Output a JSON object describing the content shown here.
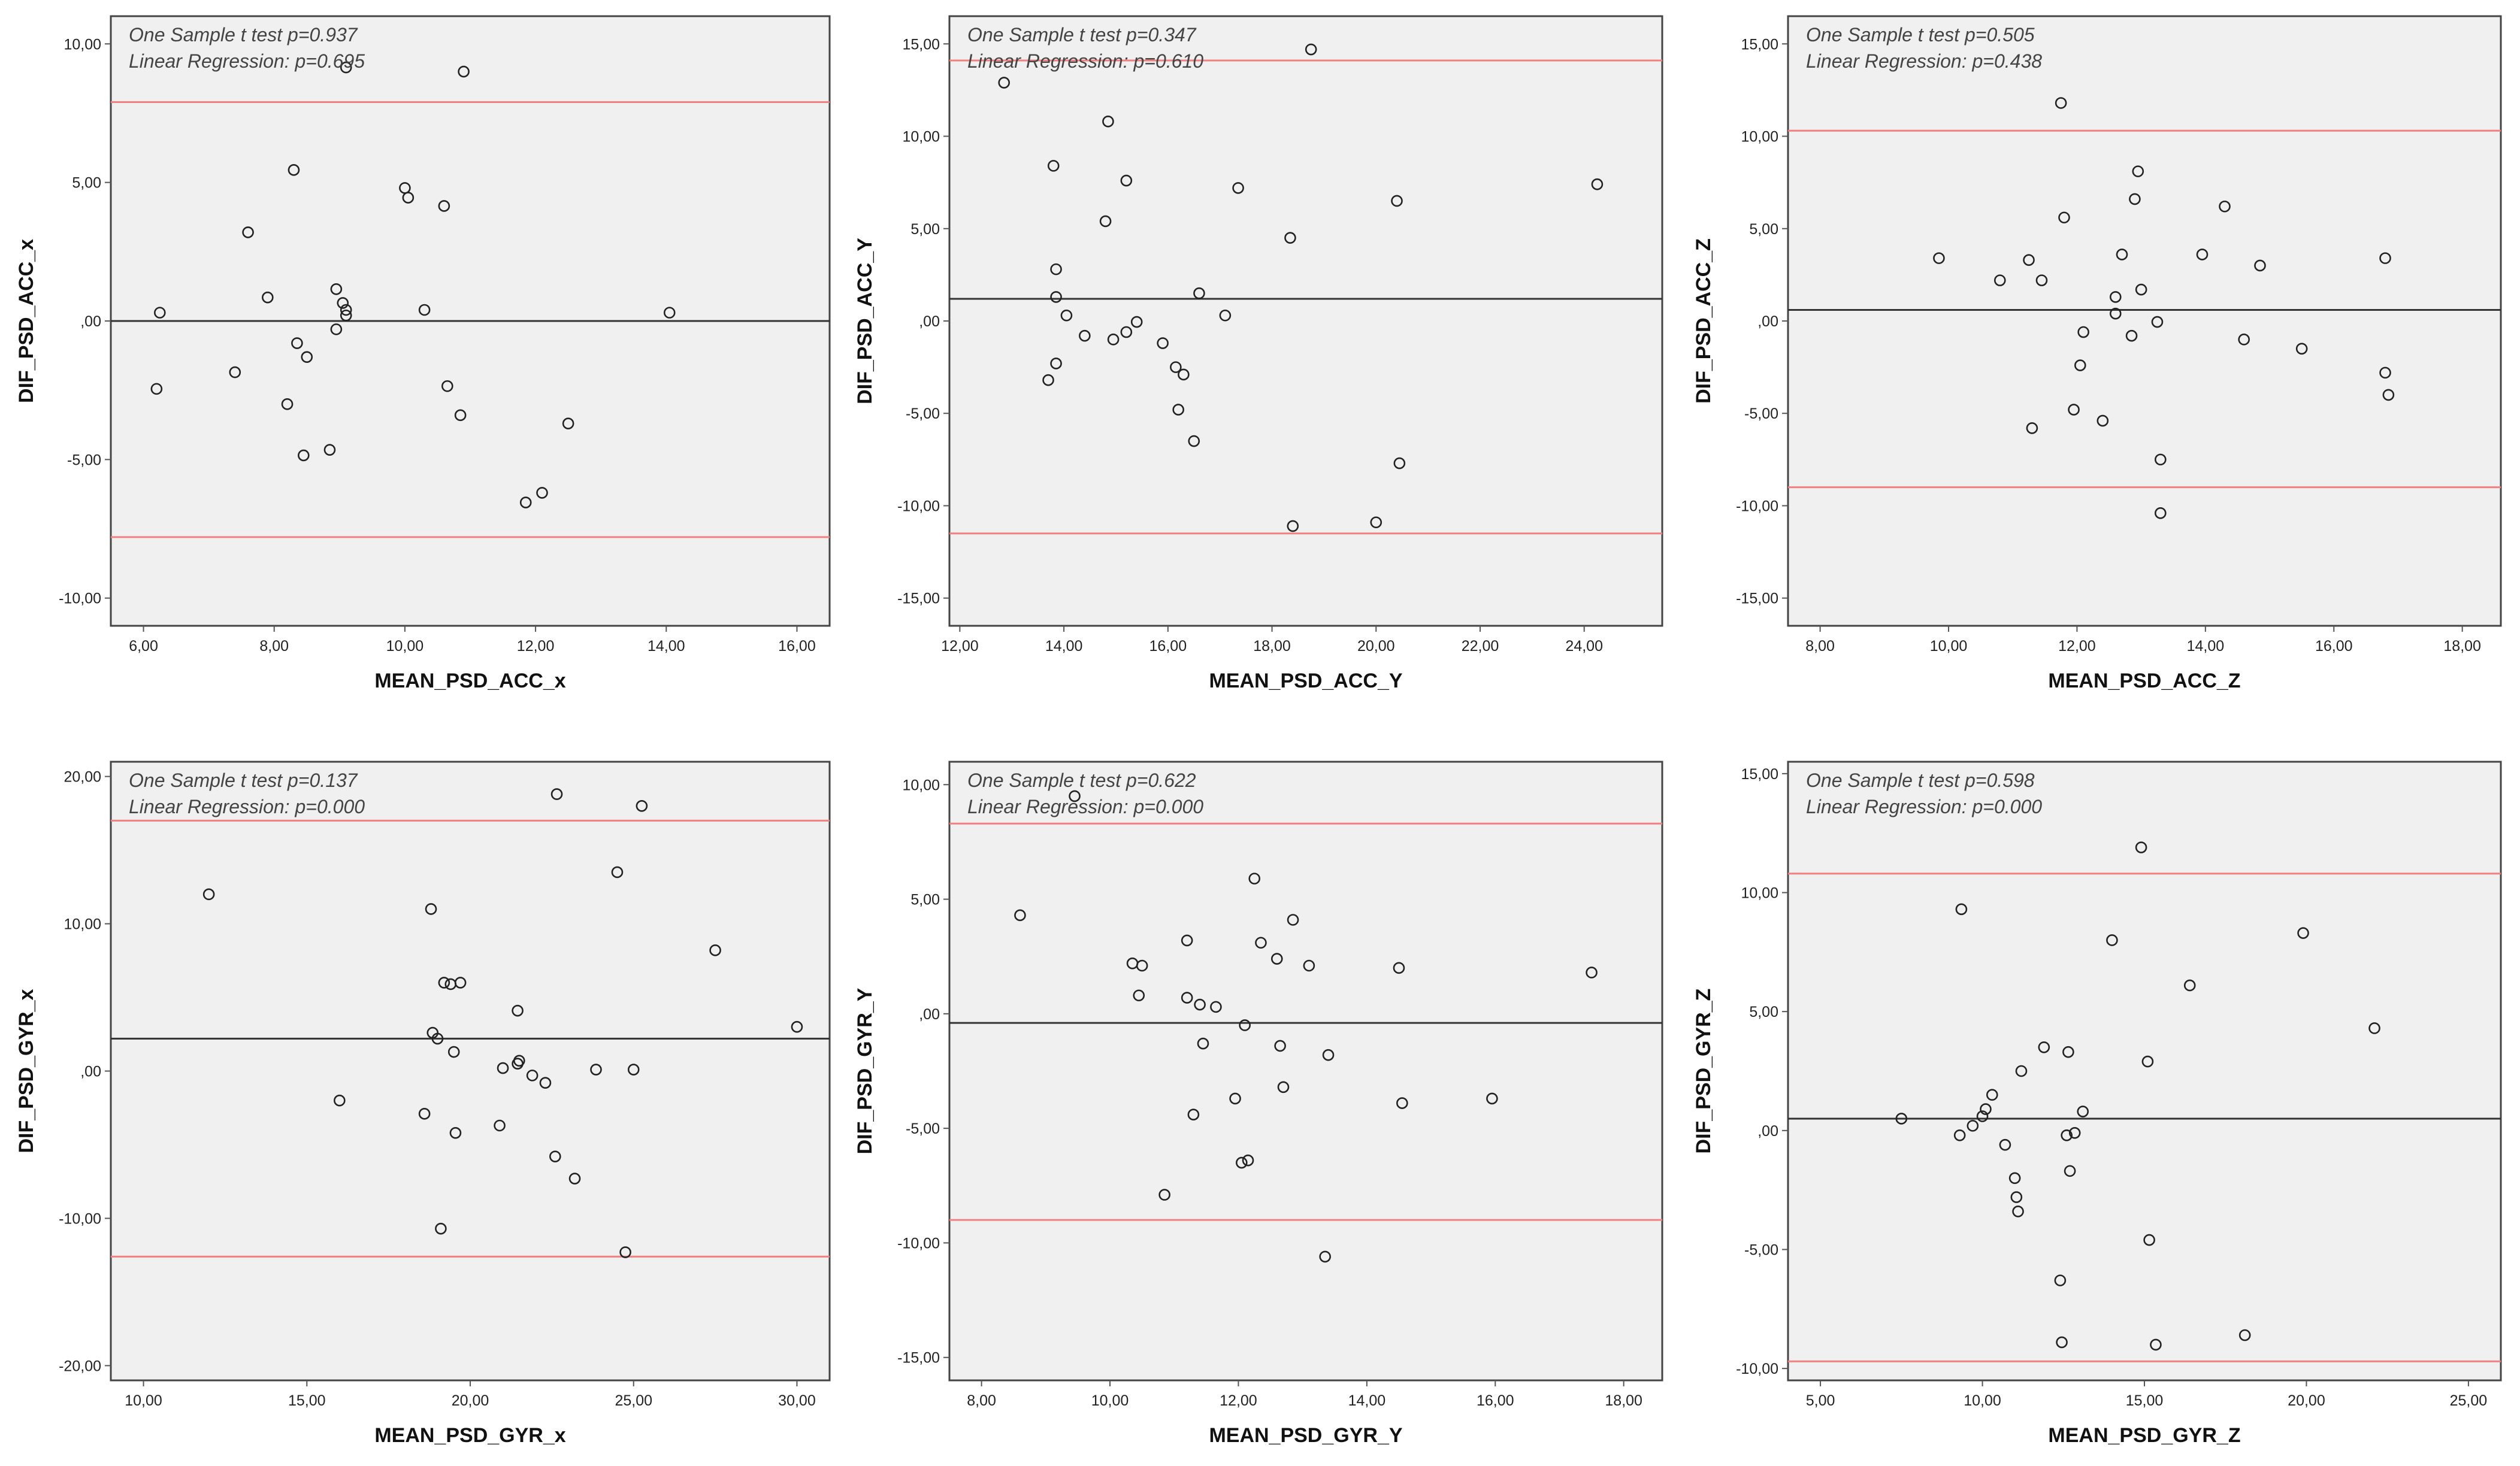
{
  "colors": {
    "mean_line": "#333333",
    "limit_line": "#f28080",
    "panel_bg": "#f0f0f0"
  },
  "chart_data": [
    {
      "type": "scatter",
      "xlabel": "MEAN_PSD_ACC_x",
      "ylabel": "DIF_PSD_ACC_x",
      "annotations": [
        "One Sample t test  p=0.937",
        "Linear Regression: p=0.695"
      ],
      "xlim": [
        5.5,
        16.5
      ],
      "ylim": [
        -11,
        11
      ],
      "xticks": [
        6,
        8,
        10,
        12,
        14,
        16
      ],
      "xtick_labels": [
        "6,00",
        "8,00",
        "10,00",
        "12,00",
        "14,00",
        "16,00"
      ],
      "yticks": [
        -10,
        -5,
        0,
        5,
        10
      ],
      "ytick_labels": [
        "-10,00",
        "-5,00",
        ",00",
        "5,00",
        "10,00"
      ],
      "mean_line": 0.0,
      "upper_limit": 7.9,
      "lower_limit": -7.8,
      "points": [
        [
          6.25,
          0.3
        ],
        [
          6.2,
          -2.45
        ],
        [
          7.4,
          -1.85
        ],
        [
          7.6,
          3.2
        ],
        [
          7.9,
          0.85
        ],
        [
          8.2,
          -3.0
        ],
        [
          8.3,
          5.45
        ],
        [
          8.35,
          -0.8
        ],
        [
          8.45,
          -4.85
        ],
        [
          8.5,
          -1.3
        ],
        [
          8.85,
          -4.65
        ],
        [
          8.95,
          1.15
        ],
        [
          8.95,
          -0.3
        ],
        [
          9.05,
          0.65
        ],
        [
          9.1,
          0.2
        ],
        [
          9.1,
          0.4
        ],
        [
          9.1,
          9.15
        ],
        [
          10.0,
          4.8
        ],
        [
          10.05,
          4.45
        ],
        [
          10.3,
          0.4
        ],
        [
          10.6,
          4.15
        ],
        [
          10.65,
          -2.35
        ],
        [
          10.85,
          -3.4
        ],
        [
          10.9,
          9.0
        ],
        [
          11.85,
          -6.55
        ],
        [
          12.1,
          -6.2
        ],
        [
          12.5,
          -3.7
        ],
        [
          14.05,
          0.3
        ]
      ]
    },
    {
      "type": "scatter",
      "xlabel": "MEAN_PSD_ACC_Y",
      "ylabel": "DIF_PSD_ACC_Y",
      "annotations": [
        "One Sample t test  p=0.347",
        "Linear Regression: p=0.610"
      ],
      "xlim": [
        11.8,
        25.5
      ],
      "ylim": [
        -16.5,
        16.5
      ],
      "xticks": [
        12,
        14,
        16,
        18,
        20,
        22,
        24
      ],
      "xtick_labels": [
        "12,00",
        "14,00",
        "16,00",
        "18,00",
        "20,00",
        "22,00",
        "24,00"
      ],
      "yticks": [
        -15,
        -10,
        -5,
        0,
        5,
        10,
        15
      ],
      "ytick_labels": [
        "-15,00",
        "-10,00",
        "-5,00",
        ",00",
        "5,00",
        "10,00",
        "15,00"
      ],
      "mean_line": 1.2,
      "upper_limit": 14.1,
      "lower_limit": -11.5,
      "points": [
        [
          12.85,
          12.9
        ],
        [
          13.7,
          -3.2
        ],
        [
          13.8,
          8.4
        ],
        [
          13.85,
          -2.3
        ],
        [
          13.85,
          1.3
        ],
        [
          13.85,
          2.8
        ],
        [
          14.05,
          0.3
        ],
        [
          14.4,
          -0.8
        ],
        [
          14.8,
          5.4
        ],
        [
          14.85,
          10.8
        ],
        [
          14.95,
          -1.0
        ],
        [
          15.2,
          7.6
        ],
        [
          15.2,
          -0.6
        ],
        [
          15.4,
          -0.05
        ],
        [
          15.9,
          -1.2
        ],
        [
          16.15,
          -2.5
        ],
        [
          16.2,
          -4.8
        ],
        [
          16.3,
          -2.9
        ],
        [
          16.5,
          -6.5
        ],
        [
          16.6,
          1.5
        ],
        [
          17.1,
          0.3
        ],
        [
          17.35,
          7.2
        ],
        [
          18.35,
          4.5
        ],
        [
          18.4,
          -11.1
        ],
        [
          18.75,
          14.7
        ],
        [
          20.0,
          -10.9
        ],
        [
          20.4,
          6.5
        ],
        [
          20.45,
          -7.7
        ],
        [
          24.25,
          7.4
        ]
      ]
    },
    {
      "type": "scatter",
      "xlabel": "MEAN_PSD_ACC_Z",
      "ylabel": "DIF_PSD_ACC_Z",
      "annotations": [
        "One Sample t test  p=0.505",
        "Linear Regression: p=0.438"
      ],
      "xlim": [
        7.5,
        18.6
      ],
      "ylim": [
        -16.5,
        16.5
      ],
      "xticks": [
        8,
        10,
        12,
        14,
        16,
        18
      ],
      "xtick_labels": [
        "8,00",
        "10,00",
        "12,00",
        "14,00",
        "16,00",
        "18,00"
      ],
      "yticks": [
        -15,
        -10,
        -5,
        0,
        5,
        10,
        15
      ],
      "ytick_labels": [
        "-15,00",
        "-10,00",
        "-5,00",
        ",00",
        "5,00",
        "10,00",
        "15,00"
      ],
      "mean_line": 0.6,
      "upper_limit": 10.3,
      "lower_limit": -9.0,
      "points": [
        [
          9.85,
          3.4
        ],
        [
          10.8,
          2.2
        ],
        [
          11.25,
          3.3
        ],
        [
          11.3,
          -5.8
        ],
        [
          11.45,
          2.2
        ],
        [
          11.75,
          11.8
        ],
        [
          11.8,
          5.6
        ],
        [
          11.95,
          -4.8
        ],
        [
          12.05,
          -2.4
        ],
        [
          12.1,
          -0.6
        ],
        [
          12.4,
          -5.4
        ],
        [
          12.6,
          1.3
        ],
        [
          12.6,
          0.4
        ],
        [
          12.7,
          3.6
        ],
        [
          12.85,
          -0.8
        ],
        [
          12.9,
          6.6
        ],
        [
          12.95,
          8.1
        ],
        [
          13.0,
          1.7
        ],
        [
          13.25,
          -0.05
        ],
        [
          13.3,
          -10.4
        ],
        [
          13.3,
          -7.5
        ],
        [
          13.95,
          3.6
        ],
        [
          14.3,
          6.2
        ],
        [
          14.6,
          -1.0
        ],
        [
          14.85,
          3.0
        ],
        [
          15.5,
          -1.5
        ],
        [
          16.8,
          -2.8
        ],
        [
          16.85,
          -4.0
        ],
        [
          16.8,
          3.4
        ]
      ]
    },
    {
      "type": "scatter",
      "xlabel": "MEAN_PSD_GYR_x",
      "ylabel": "DIF_PSD_GYR_x",
      "annotations": [
        "One Sample t test  p=0.137",
        "Linear Regression: p=0.000"
      ],
      "xlim": [
        9.0,
        31.0
      ],
      "ylim": [
        -21.0,
        21.0
      ],
      "xticks": [
        10,
        15,
        20,
        25,
        30
      ],
      "xtick_labels": [
        "10,00",
        "15,00",
        "20,00",
        "25,00",
        "30,00"
      ],
      "yticks": [
        -20,
        -10,
        0,
        10,
        20
      ],
      "ytick_labels": [
        "-20,00",
        "-10,00",
        ",00",
        "10,00",
        "20,00"
      ],
      "mean_line": 2.2,
      "upper_limit": 17.0,
      "lower_limit": -12.6,
      "points": [
        [
          12.0,
          12.0
        ],
        [
          16.0,
          -2.0
        ],
        [
          18.6,
          -2.9
        ],
        [
          18.8,
          11.0
        ],
        [
          18.85,
          2.6
        ],
        [
          19.0,
          2.2
        ],
        [
          19.1,
          -10.7
        ],
        [
          19.2,
          6.0
        ],
        [
          19.4,
          5.9
        ],
        [
          19.5,
          1.3
        ],
        [
          19.55,
          -4.2
        ],
        [
          19.7,
          6.0
        ],
        [
          21.0,
          0.2
        ],
        [
          21.45,
          4.1
        ],
        [
          21.45,
          0.5
        ],
        [
          21.5,
          0.7
        ],
        [
          21.9,
          -0.3
        ],
        [
          22.3,
          -0.8
        ],
        [
          22.6,
          -5.8
        ],
        [
          22.65,
          18.8
        ],
        [
          23.2,
          -7.3
        ],
        [
          23.85,
          0.1
        ],
        [
          24.5,
          13.5
        ],
        [
          24.75,
          -12.3
        ],
        [
          25.0,
          0.1
        ],
        [
          25.25,
          18.0
        ],
        [
          27.5,
          8.2
        ],
        [
          30.0,
          3.0
        ],
        [
          20.9,
          -3.7
        ]
      ]
    },
    {
      "type": "scatter",
      "xlabel": "MEAN_PSD_GYR_Y",
      "ylabel": "DIF_PSD_GYR_Y",
      "annotations": [
        "One Sample t test  p=0.622",
        "Linear Regression: p=0.000"
      ],
      "xlim": [
        7.5,
        18.6
      ],
      "ylim": [
        -16.0,
        11.0
      ],
      "xticks": [
        8,
        10,
        12,
        14,
        16,
        18
      ],
      "xtick_labels": [
        "8,00",
        "10,00",
        "12,00",
        "14,00",
        "16,00",
        "18,00"
      ],
      "yticks": [
        -15,
        -10,
        -5,
        0,
        5,
        10
      ],
      "ytick_labels": [
        "-15,00",
        "-10,00",
        "-5,00",
        ",00",
        "5,00",
        "10,00"
      ],
      "mean_line": -0.4,
      "upper_limit": 8.3,
      "lower_limit": -9.0,
      "points": [
        [
          8.6,
          4.3
        ],
        [
          9.45,
          9.5
        ],
        [
          10.35,
          2.2
        ],
        [
          10.45,
          0.8
        ],
        [
          10.5,
          2.1
        ],
        [
          10.85,
          -7.9
        ],
        [
          11.2,
          3.2
        ],
        [
          11.2,
          0.7
        ],
        [
          11.3,
          -4.4
        ],
        [
          11.4,
          0.4
        ],
        [
          11.45,
          -1.3
        ],
        [
          11.65,
          0.3
        ],
        [
          11.95,
          -3.7
        ],
        [
          12.05,
          -6.5
        ],
        [
          12.1,
          -0.5
        ],
        [
          12.15,
          -6.4
        ],
        [
          12.25,
          5.9
        ],
        [
          12.35,
          3.1
        ],
        [
          12.6,
          2.4
        ],
        [
          12.65,
          -1.4
        ],
        [
          12.7,
          -3.2
        ],
        [
          12.85,
          4.1
        ],
        [
          13.1,
          2.1
        ],
        [
          13.35,
          -10.6
        ],
        [
          13.4,
          -1.8
        ],
        [
          14.5,
          2.0
        ],
        [
          14.55,
          -3.9
        ],
        [
          15.95,
          -3.7
        ],
        [
          17.5,
          1.8
        ]
      ]
    },
    {
      "type": "scatter",
      "xlabel": "MEAN_PSD_GYR_Z",
      "ylabel": "DIF_PSD_GYR_Z",
      "annotations": [
        "One Sample t test  p=0.598",
        "Linear Regression: p=0.000"
      ],
      "xlim": [
        4.0,
        26.0
      ],
      "ylim": [
        -10.5,
        15.5
      ],
      "xticks": [
        5,
        10,
        15,
        20,
        25
      ],
      "xtick_labels": [
        "5,00",
        "10,00",
        "15,00",
        "20,00",
        "25,00"
      ],
      "yticks": [
        -10,
        -5,
        0,
        5,
        10,
        15
      ],
      "ytick_labels": [
        "-10,00",
        "-5,00",
        ",00",
        "5,00",
        "10,00",
        "15,00"
      ],
      "mean_line": 0.5,
      "upper_limit": 10.8,
      "lower_limit": -9.7,
      "points": [
        [
          7.5,
          0.5
        ],
        [
          9.3,
          -0.2
        ],
        [
          9.35,
          9.3
        ],
        [
          9.7,
          0.2
        ],
        [
          10.0,
          0.6
        ],
        [
          10.1,
          0.9
        ],
        [
          10.3,
          1.5
        ],
        [
          10.7,
          -0.6
        ],
        [
          11.0,
          -2.0
        ],
        [
          11.05,
          -2.8
        ],
        [
          11.1,
          -3.4
        ],
        [
          11.2,
          2.5
        ],
        [
          11.9,
          3.5
        ],
        [
          12.4,
          -6.3
        ],
        [
          12.45,
          -8.9
        ],
        [
          12.6,
          -0.2
        ],
        [
          12.65,
          3.3
        ],
        [
          12.7,
          -1.7
        ],
        [
          12.85,
          -0.1
        ],
        [
          13.1,
          0.8
        ],
        [
          14.0,
          8.0
        ],
        [
          14.9,
          11.9
        ],
        [
          15.1,
          2.9
        ],
        [
          15.15,
          -4.6
        ],
        [
          15.35,
          -9.0
        ],
        [
          16.4,
          6.1
        ],
        [
          18.1,
          -8.6
        ],
        [
          19.9,
          8.3
        ],
        [
          22.1,
          4.3
        ]
      ]
    }
  ]
}
